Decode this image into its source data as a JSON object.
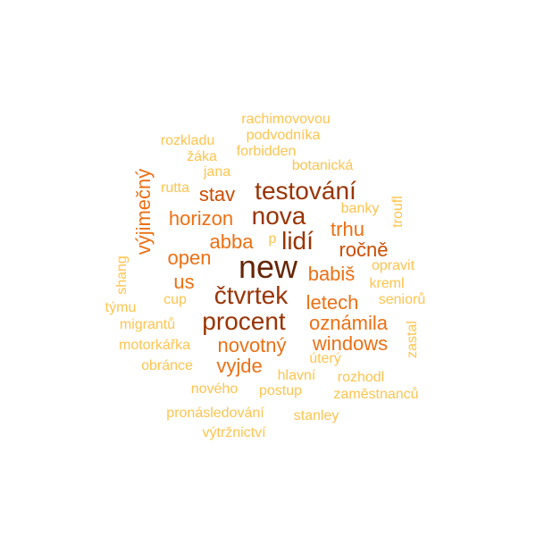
{
  "words": [
    {
      "text": "new",
      "color": "#662506"
    },
    {
      "text": "testování",
      "color": "#993404"
    },
    {
      "text": "nova",
      "color": "#993404"
    },
    {
      "text": "čtvrtek",
      "color": "#993404"
    },
    {
      "text": "procent",
      "color": "#993404"
    },
    {
      "text": "lidí",
      "color": "#993404"
    },
    {
      "text": "stav",
      "color": "#cc4c02"
    },
    {
      "text": "horizon",
      "color": "#ec7014"
    },
    {
      "text": "trhu",
      "color": "#ec7014"
    },
    {
      "text": "ročně",
      "color": "#cc4c02"
    },
    {
      "text": "abba",
      "color": "#ec7014"
    },
    {
      "text": "open",
      "color": "#ec7014"
    },
    {
      "text": "babiš",
      "color": "#ec7014"
    },
    {
      "text": "us",
      "color": "#ec7014"
    },
    {
      "text": "letech",
      "color": "#ec7014"
    },
    {
      "text": "oznámila",
      "color": "#ec7014"
    },
    {
      "text": "novotný",
      "color": "#ec7014"
    },
    {
      "text": "windows",
      "color": "#ec7014"
    },
    {
      "text": "vyjde",
      "color": "#ec7014"
    },
    {
      "text": "výjimečný",
      "color": "#ec7014"
    },
    {
      "text": "rachimovovou",
      "color": "#fec44f"
    },
    {
      "text": "podvodníka",
      "color": "#fec44f"
    },
    {
      "text": "rozkladu",
      "color": "#fec44f"
    },
    {
      "text": "forbidden",
      "color": "#fec44f"
    },
    {
      "text": "žáka",
      "color": "#fec44f"
    },
    {
      "text": "botanická",
      "color": "#fec44f"
    },
    {
      "text": "jana",
      "color": "#fec44f"
    },
    {
      "text": "rutta",
      "color": "#fec44f"
    },
    {
      "text": "banky",
      "color": "#fec44f"
    },
    {
      "text": "troufl",
      "color": "#fec44f"
    },
    {
      "text": "p",
      "color": "#fec44f"
    },
    {
      "text": "opravit",
      "color": "#fec44f"
    },
    {
      "text": "kreml",
      "color": "#fec44f"
    },
    {
      "text": "shang",
      "color": "#fec44f"
    },
    {
      "text": "seniorů",
      "color": "#fec44f"
    },
    {
      "text": "cup",
      "color": "#fec44f"
    },
    {
      "text": "týmu",
      "color": "#fec44f"
    },
    {
      "text": "migrantů",
      "color": "#fec44f"
    },
    {
      "text": "zastal",
      "color": "#fec44f"
    },
    {
      "text": "motorkářka",
      "color": "#fec44f"
    },
    {
      "text": "úterý",
      "color": "#fec44f"
    },
    {
      "text": "obránce",
      "color": "#fec44f"
    },
    {
      "text": "hlavní",
      "color": "#fec44f"
    },
    {
      "text": "rozhodl",
      "color": "#fec44f"
    },
    {
      "text": "nového",
      "color": "#fec44f"
    },
    {
      "text": "postup",
      "color": "#fec44f"
    },
    {
      "text": "zaměstnanců",
      "color": "#fec44f"
    },
    {
      "text": "pronásledování",
      "color": "#fec44f"
    },
    {
      "text": "stanley",
      "color": "#fec44f"
    },
    {
      "text": "výtržnictví",
      "color": "#fec44f"
    }
  ]
}
